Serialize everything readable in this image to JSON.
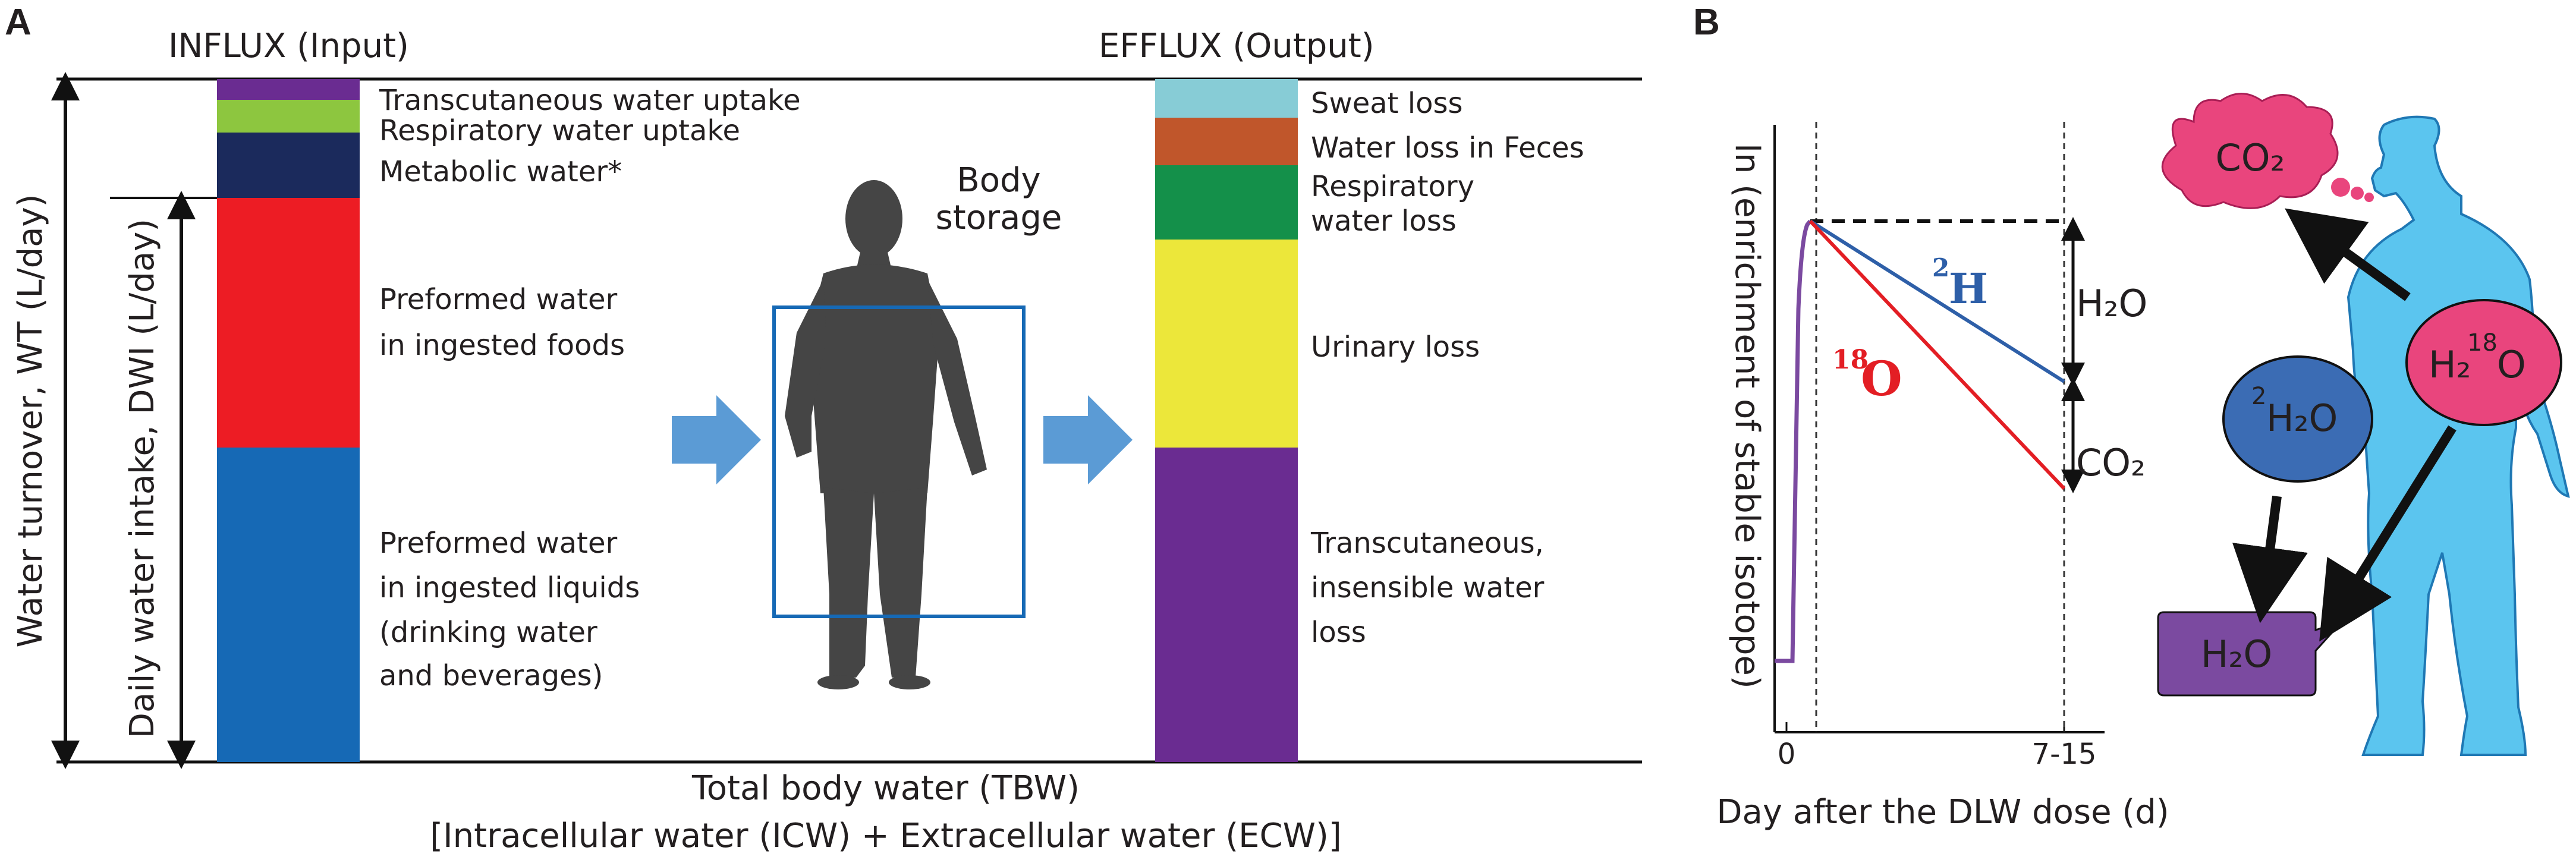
{
  "panel_a": {
    "label": "A",
    "influx_title": "INFLUX (Input)",
    "efflux_title": "EFFLUX (Output)",
    "wt_axis": "Water turnover, WT (L/day)",
    "dwi_axis": "Daily water intake, DWI (L/day)",
    "body_storage_line1": "Body",
    "body_storage_line2": "storage",
    "tbw_line1": "Total body water (TBW)",
    "tbw_line2": "[Intracellular water (ICW) + Extracellular water (ECW)]",
    "influx_segments": [
      {
        "lines": [
          "Transcutaneous water uptake"
        ],
        "color": "#6a2c91"
      },
      {
        "lines": [
          "Respiratory water uptake"
        ],
        "color": "#8dc63f"
      },
      {
        "lines": [
          "Metabolic water*"
        ],
        "color": "#1b2a5c"
      },
      {
        "lines": [
          "Preformed water",
          "in ingested foods"
        ],
        "color": "#ed1c24"
      },
      {
        "lines": [
          "Preformed water",
          "in ingested liquids",
          "(drinking water",
          "and beverages)"
        ],
        "color": "#1669b5"
      }
    ],
    "efflux_segments": [
      {
        "lines": [
          "Sweat loss"
        ],
        "color": "#87ccd6"
      },
      {
        "lines": [
          "Water loss in Feces"
        ],
        "color": "#c0562b"
      },
      {
        "lines": [
          "Respiratory",
          "water loss"
        ],
        "color": "#14904a"
      },
      {
        "lines": [
          "Urinary loss"
        ],
        "color": "#ece73a"
      },
      {
        "lines": [
          "Transcutaneous,",
          "insensible water",
          "loss"
        ],
        "color": "#6a2c91"
      }
    ]
  },
  "panel_b": {
    "label": "B",
    "y_axis": "ln (enrichment of stable isotope)",
    "x_axis": "Day after the DLW dose (d)",
    "x_tick_0": "0",
    "x_tick_end": "7-15",
    "h2_label": "H",
    "h2_sup": "2",
    "o18_label": "O",
    "o18_sup": "18",
    "h2o_bracket": "H₂O",
    "co2_bracket": "CO₂",
    "bubble_co2": "CO₂",
    "bubble_h2o": "H₂O",
    "bubble_2h2o_sup": "2",
    "bubble_2h2o": "H₂O",
    "bubble_h218o_pre": "H₂",
    "bubble_h218o_sup": "18",
    "bubble_h218o_post": "O",
    "colors": {
      "h2_line": "#2e5fa8",
      "o18_line": "#e31e24",
      "baseline": "#7b4aa0",
      "body": "#5bc5ef",
      "co2_bubble": "#e9457d",
      "h2o_bubble": "#7b4aa0",
      "h2_bubble": "#3b6cb4"
    },
    "chart_data": {
      "type": "line",
      "xlabel": "Day after the DLW dose (d)",
      "ylabel": "ln (enrichment of stable isotope)",
      "x_ticks": [
        "0",
        "7-15"
      ],
      "series": [
        {
          "name": "2H",
          "x": [
            "0",
            "7-15"
          ]
        },
        {
          "name": "18O",
          "x": [
            "0",
            "7-15"
          ]
        }
      ]
    }
  }
}
